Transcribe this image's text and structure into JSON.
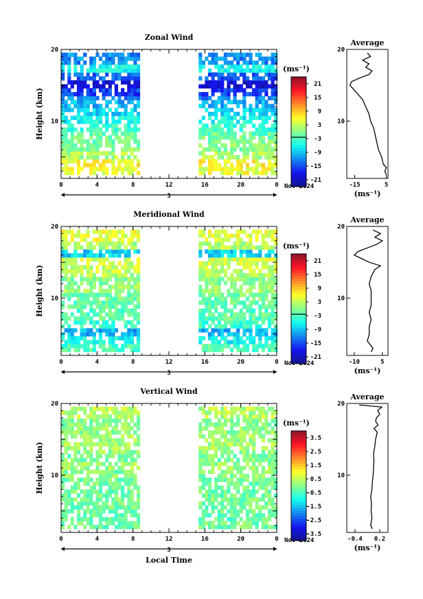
{
  "chart_data": [
    {
      "type": "heatmap",
      "title": "Zonal Wind",
      "ylabel": "Height (km)",
      "xlabel": "",
      "xlim": [
        0,
        24
      ],
      "x_ticks": [
        "0",
        "4",
        "8",
        "12",
        "16",
        "20",
        "0"
      ],
      "ylim": [
        2,
        20
      ],
      "y_ticks": [
        "10",
        "20"
      ],
      "date_day": "3",
      "date_label": "Nov 2024",
      "colorbar_unit": "(ms⁻¹)",
      "colorbar_ticks": [
        "21",
        "15",
        "9",
        "3",
        "-3",
        "-9",
        "-15",
        "-21"
      ],
      "colorbar_range": [
        -24,
        24
      ],
      "data_time_ranges": [
        [
          0,
          8.7
        ],
        [
          15.3,
          24
        ]
      ],
      "rows": [
        {
          "h": 3,
          "v": 5
        },
        {
          "h": 4,
          "v": 6
        },
        {
          "h": 5,
          "v": 2
        },
        {
          "h": 6,
          "v": 0
        },
        {
          "h": 7,
          "v": -1
        },
        {
          "h": 8,
          "v": -2
        },
        {
          "h": 9,
          "v": -4
        },
        {
          "h": 10,
          "v": -6
        },
        {
          "h": 11,
          "v": -8
        },
        {
          "h": 12,
          "v": -10
        },
        {
          "h": 13,
          "v": -12
        },
        {
          "h": 14,
          "v": -16
        },
        {
          "h": 15,
          "v": -20
        },
        {
          "h": 16,
          "v": -14
        },
        {
          "h": 17,
          "v": -6
        },
        {
          "h": 18,
          "v": -12
        }
      ],
      "average": {
        "title": "Average",
        "xlim": [
          -20,
          6
        ],
        "x_ticks": [
          "-15",
          "5"
        ],
        "unit": "(ms⁻¹)",
        "profile": [
          {
            "h": 2.5,
            "v": 5
          },
          {
            "h": 3,
            "v": 4
          },
          {
            "h": 3.5,
            "v": 5
          },
          {
            "h": 4,
            "v": 3
          },
          {
            "h": 5,
            "v": 2
          },
          {
            "h": 6,
            "v": 0
          },
          {
            "h": 7,
            "v": -1
          },
          {
            "h": 8,
            "v": -2
          },
          {
            "h": 9,
            "v": -3
          },
          {
            "h": 10,
            "v": -5
          },
          {
            "h": 11,
            "v": -6
          },
          {
            "h": 12,
            "v": -8
          },
          {
            "h": 13,
            "v": -10
          },
          {
            "h": 14,
            "v": -14
          },
          {
            "h": 14.5,
            "v": -16
          },
          {
            "h": 15,
            "v": -18
          },
          {
            "h": 15.5,
            "v": -17
          },
          {
            "h": 16,
            "v": -12
          },
          {
            "h": 16.5,
            "v": -6
          },
          {
            "h": 17,
            "v": -4
          },
          {
            "h": 17.5,
            "v": -8
          },
          {
            "h": 18,
            "v": -6
          },
          {
            "h": 18.5,
            "v": -10
          },
          {
            "h": 19,
            "v": -5
          },
          {
            "h": 19.5,
            "v": -7
          }
        ]
      }
    },
    {
      "type": "heatmap",
      "title": "Meridional Wind",
      "ylabel": "Height (km)",
      "xlabel": "",
      "xlim": [
        0,
        24
      ],
      "x_ticks": [
        "0",
        "4",
        "8",
        "12",
        "16",
        "20",
        "0"
      ],
      "ylim": [
        2,
        20
      ],
      "y_ticks": [
        "10",
        "20"
      ],
      "date_day": "3",
      "date_label": "Nov 2024",
      "colorbar_unit": "(ms⁻¹)",
      "colorbar_ticks": [
        "21",
        "15",
        "9",
        "3",
        "-3",
        "-9",
        "-15",
        "-21"
      ],
      "colorbar_range": [
        -24,
        24
      ],
      "data_time_ranges": [
        [
          0,
          8.7
        ],
        [
          15.3,
          24
        ]
      ],
      "rows": [
        {
          "h": 3,
          "v": -3
        },
        {
          "h": 4,
          "v": -6
        },
        {
          "h": 5,
          "v": -10
        },
        {
          "h": 6,
          "v": -4
        },
        {
          "h": 7,
          "v": -2
        },
        {
          "h": 8,
          "v": -3
        },
        {
          "h": 9,
          "v": -2
        },
        {
          "h": 10,
          "v": -1
        },
        {
          "h": 11,
          "v": 1
        },
        {
          "h": 12,
          "v": 0
        },
        {
          "h": 13,
          "v": 2
        },
        {
          "h": 14,
          "v": 3
        },
        {
          "h": 15,
          "v": 4
        },
        {
          "h": 16,
          "v": -8
        },
        {
          "h": 17,
          "v": 2
        },
        {
          "h": 18,
          "v": 5
        }
      ],
      "average": {
        "title": "Average",
        "xlim": [
          -14,
          8
        ],
        "x_ticks": [
          "-10",
          "5"
        ],
        "unit": "(ms⁻¹)",
        "profile": [
          {
            "h": 2.5,
            "v": -1
          },
          {
            "h": 3,
            "v": 0
          },
          {
            "h": 4,
            "v": -3
          },
          {
            "h": 5,
            "v": -2
          },
          {
            "h": 6,
            "v": -2
          },
          {
            "h": 7,
            "v": -1
          },
          {
            "h": 8,
            "v": -2
          },
          {
            "h": 9,
            "v": -1
          },
          {
            "h": 10,
            "v": -1
          },
          {
            "h": 11,
            "v": -1
          },
          {
            "h": 12,
            "v": -2
          },
          {
            "h": 13,
            "v": -1
          },
          {
            "h": 14,
            "v": 1
          },
          {
            "h": 14.5,
            "v": 4
          },
          {
            "h": 15,
            "v": -2
          },
          {
            "h": 15.5,
            "v": -6
          },
          {
            "h": 16,
            "v": -10
          },
          {
            "h": 16.5,
            "v": -8
          },
          {
            "h": 17,
            "v": -3
          },
          {
            "h": 17.5,
            "v": 2
          },
          {
            "h": 18,
            "v": 5
          },
          {
            "h": 18.5,
            "v": 1
          },
          {
            "h": 19,
            "v": 4
          },
          {
            "h": 19.5,
            "v": 0
          }
        ]
      }
    },
    {
      "type": "heatmap",
      "title": "Vertical Wind",
      "ylabel": "Height (km)",
      "xlabel": "Local Time",
      "xlim": [
        0,
        24
      ],
      "x_ticks": [
        "0",
        "4",
        "8",
        "12",
        "16",
        "20",
        "0"
      ],
      "ylim": [
        2,
        20
      ],
      "y_ticks": [
        "10",
        "20"
      ],
      "date_day": "3",
      "date_label": "Nov 2024",
      "colorbar_unit": "(ms⁻¹)",
      "colorbar_ticks": [
        "3.5",
        "2.5",
        "1.5",
        "0.5",
        "-0.5",
        "-1.5",
        "-2.5",
        "-3.5"
      ],
      "colorbar_range": [
        -4,
        4
      ],
      "data_time_ranges": [
        [
          0,
          8.7
        ],
        [
          15.3,
          24
        ]
      ],
      "rows": [
        {
          "h": 3,
          "v": -0.2
        },
        {
          "h": 4,
          "v": -0.3
        },
        {
          "h": 5,
          "v": -0.2
        },
        {
          "h": 6,
          "v": -0.1
        },
        {
          "h": 7,
          "v": -0.2
        },
        {
          "h": 8,
          "v": -0.1
        },
        {
          "h": 9,
          "v": -0.2
        },
        {
          "h": 10,
          "v": 0
        },
        {
          "h": 11,
          "v": 0.2
        },
        {
          "h": 12,
          "v": -0.1
        },
        {
          "h": 13,
          "v": 0.1
        },
        {
          "h": 14,
          "v": 0.3
        },
        {
          "h": 15,
          "v": 0.2
        },
        {
          "h": 16,
          "v": 0.1
        },
        {
          "h": 17,
          "v": 0
        },
        {
          "h": 18,
          "v": 0.4
        }
      ],
      "average": {
        "title": "Average",
        "xlim": [
          -0.6,
          0.4
        ],
        "x_ticks": [
          "-0.4",
          "0.2"
        ],
        "unit": "(ms⁻¹)",
        "profile": [
          {
            "h": 2.5,
            "v": 0.02
          },
          {
            "h": 3,
            "v": -0.02
          },
          {
            "h": 4,
            "v": 0.01
          },
          {
            "h": 5,
            "v": -0.01
          },
          {
            "h": 6,
            "v": 0.0
          },
          {
            "h": 7,
            "v": -0.02
          },
          {
            "h": 8,
            "v": 0.01
          },
          {
            "h": 9,
            "v": 0.02
          },
          {
            "h": 10,
            "v": 0.04
          },
          {
            "h": 11,
            "v": 0.05
          },
          {
            "h": 12,
            "v": 0.06
          },
          {
            "h": 13,
            "v": 0.05
          },
          {
            "h": 14,
            "v": 0.08
          },
          {
            "h": 15,
            "v": 0.1
          },
          {
            "h": 16,
            "v": 0.14
          },
          {
            "h": 16.5,
            "v": 0.06
          },
          {
            "h": 17,
            "v": 0.16
          },
          {
            "h": 17.5,
            "v": 0.1
          },
          {
            "h": 18,
            "v": 0.12
          },
          {
            "h": 18.5,
            "v": 0.2
          },
          {
            "h": 19,
            "v": 0.15
          },
          {
            "h": 19.5,
            "v": 0.25
          },
          {
            "h": 19.8,
            "v": -0.3
          }
        ]
      }
    }
  ]
}
